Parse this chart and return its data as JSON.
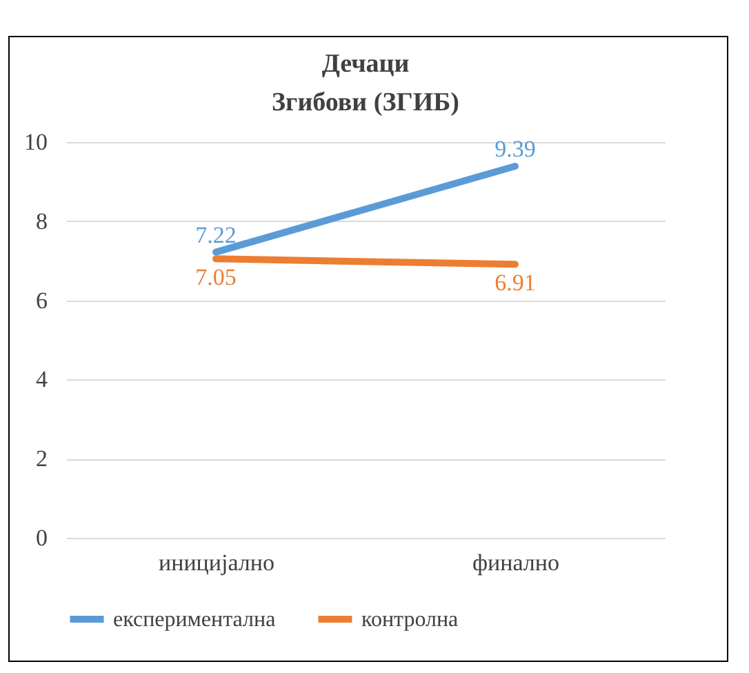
{
  "chart_data": {
    "type": "line",
    "title": [
      "Дечаци",
      "Згибови (ЗГИБ)"
    ],
    "categories": [
      "иницијално",
      "финално"
    ],
    "series": [
      {
        "name": "експериментална",
        "color": "#5b9bd5",
        "values": [
          7.22,
          9.39
        ]
      },
      {
        "name": "контролна",
        "color": "#ed7d31",
        "values": [
          7.05,
          6.91
        ]
      }
    ],
    "ylim": [
      0,
      10
    ],
    "yticks": [
      0,
      2,
      4,
      6,
      8,
      10
    ],
    "grid": "y",
    "legend": "bottom",
    "data_labels": true
  }
}
